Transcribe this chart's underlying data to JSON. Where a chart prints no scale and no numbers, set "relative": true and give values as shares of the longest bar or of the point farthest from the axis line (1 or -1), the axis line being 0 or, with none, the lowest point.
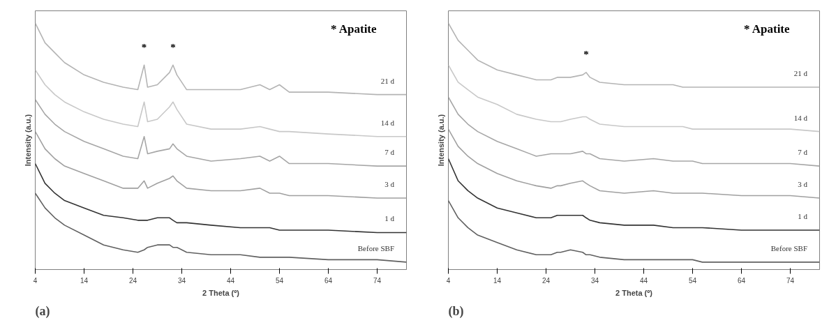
{
  "chart_data": [
    {
      "type": "line",
      "relative": true,
      "xlabel": "2 Theta (º)",
      "ylabel": "Intensity (a.u.)",
      "xlim": [
        4,
        80
      ],
      "xticks": [
        4,
        14,
        24,
        34,
        44,
        54,
        64,
        74
      ],
      "grid": false,
      "legend": false,
      "annotations": [
        "* Apatite",
        "(a)",
        "*",
        "*"
      ],
      "x": [
        4,
        6,
        8,
        10,
        14,
        18,
        22,
        25,
        26.3,
        27,
        29,
        31.5,
        32.2,
        33,
        35,
        40,
        46,
        50,
        52,
        54,
        56,
        64,
        74,
        80
      ],
      "series": [
        {
          "name": "21 d",
          "color": "#b4b4b4",
          "values": [
            1.0,
            0.92,
            0.88,
            0.84,
            0.79,
            0.76,
            0.74,
            0.73,
            0.83,
            0.74,
            0.75,
            0.8,
            0.83,
            0.79,
            0.73,
            0.73,
            0.73,
            0.75,
            0.73,
            0.75,
            0.72,
            0.72,
            0.71,
            0.71
          ]
        },
        {
          "name": "14 d",
          "color": "#c8c8c8",
          "values": [
            0.81,
            0.75,
            0.71,
            0.68,
            0.64,
            0.61,
            0.59,
            0.58,
            0.68,
            0.6,
            0.61,
            0.66,
            0.68,
            0.65,
            0.59,
            0.57,
            0.57,
            0.58,
            0.57,
            0.56,
            0.56,
            0.55,
            0.54,
            0.54
          ]
        },
        {
          "name": "7 d",
          "color": "#a6a6a6",
          "values": [
            0.69,
            0.63,
            0.59,
            0.56,
            0.52,
            0.49,
            0.46,
            0.45,
            0.54,
            0.47,
            0.48,
            0.49,
            0.51,
            0.49,
            0.46,
            0.44,
            0.45,
            0.46,
            0.44,
            0.46,
            0.43,
            0.43,
            0.42,
            0.42
          ]
        },
        {
          "name": "3 d",
          "color": "#a0a0a0",
          "values": [
            0.56,
            0.49,
            0.45,
            0.42,
            0.39,
            0.36,
            0.33,
            0.33,
            0.36,
            0.33,
            0.35,
            0.37,
            0.38,
            0.36,
            0.33,
            0.32,
            0.32,
            0.33,
            0.31,
            0.31,
            0.3,
            0.3,
            0.29,
            0.29
          ]
        },
        {
          "name": "1 d",
          "color": "#333333",
          "values": [
            0.43,
            0.35,
            0.31,
            0.28,
            0.25,
            0.22,
            0.21,
            0.2,
            0.2,
            0.2,
            0.21,
            0.21,
            0.2,
            0.19,
            0.19,
            0.18,
            0.17,
            0.17,
            0.17,
            0.16,
            0.16,
            0.16,
            0.15,
            0.15
          ]
        },
        {
          "name": "Before SBF",
          "color": "#606060",
          "values": [
            0.31,
            0.25,
            0.21,
            0.18,
            0.14,
            0.1,
            0.08,
            0.07,
            0.08,
            0.09,
            0.1,
            0.1,
            0.09,
            0.09,
            0.07,
            0.06,
            0.06,
            0.05,
            0.05,
            0.05,
            0.05,
            0.04,
            0.04,
            0.03
          ]
        }
      ]
    },
    {
      "type": "line",
      "relative": true,
      "xlabel": "2 Theta (º)",
      "ylabel": "Intensity (a.u.)",
      "xlim": [
        4,
        80
      ],
      "xticks": [
        4,
        14,
        24,
        34,
        44,
        54,
        64,
        74
      ],
      "grid": false,
      "legend": false,
      "annotations": [
        "* Apatite",
        "(b)",
        "*"
      ],
      "x": [
        4,
        6,
        8,
        10,
        14,
        18,
        22,
        25,
        26.3,
        27,
        29,
        31.5,
        32.2,
        33,
        35,
        40,
        46,
        50,
        52,
        54,
        56,
        64,
        74,
        80
      ],
      "series": [
        {
          "name": "21 d",
          "color": "#b4b4b4",
          "values": [
            1.0,
            0.93,
            0.89,
            0.85,
            0.81,
            0.79,
            0.77,
            0.77,
            0.78,
            0.78,
            0.78,
            0.79,
            0.8,
            0.78,
            0.76,
            0.75,
            0.75,
            0.75,
            0.74,
            0.74,
            0.74,
            0.74,
            0.74,
            0.74
          ]
        },
        {
          "name": "14 d",
          "color": "#c8c8c8",
          "values": [
            0.83,
            0.76,
            0.73,
            0.7,
            0.67,
            0.63,
            0.61,
            0.6,
            0.6,
            0.6,
            0.61,
            0.62,
            0.62,
            0.61,
            0.59,
            0.58,
            0.58,
            0.58,
            0.58,
            0.57,
            0.57,
            0.57,
            0.57,
            0.56
          ]
        },
        {
          "name": "7 d",
          "color": "#a6a6a6",
          "values": [
            0.7,
            0.63,
            0.59,
            0.56,
            0.52,
            0.49,
            0.46,
            0.47,
            0.47,
            0.47,
            0.47,
            0.48,
            0.47,
            0.47,
            0.45,
            0.44,
            0.45,
            0.44,
            0.44,
            0.44,
            0.43,
            0.43,
            0.43,
            0.42
          ]
        },
        {
          "name": "3 d",
          "color": "#a0a0a0",
          "values": [
            0.57,
            0.5,
            0.46,
            0.43,
            0.39,
            0.36,
            0.34,
            0.33,
            0.34,
            0.34,
            0.35,
            0.36,
            0.35,
            0.34,
            0.32,
            0.31,
            0.32,
            0.31,
            0.31,
            0.31,
            0.31,
            0.3,
            0.3,
            0.29
          ]
        },
        {
          "name": "1 d",
          "color": "#333333",
          "values": [
            0.45,
            0.36,
            0.32,
            0.29,
            0.25,
            0.23,
            0.21,
            0.21,
            0.22,
            0.22,
            0.22,
            0.22,
            0.21,
            0.2,
            0.19,
            0.18,
            0.18,
            0.17,
            0.17,
            0.17,
            0.17,
            0.16,
            0.16,
            0.16
          ]
        },
        {
          "name": "Before SBF",
          "color": "#606060",
          "values": [
            0.28,
            0.21,
            0.17,
            0.14,
            0.11,
            0.08,
            0.06,
            0.06,
            0.07,
            0.07,
            0.08,
            0.07,
            0.06,
            0.06,
            0.05,
            0.04,
            0.04,
            0.04,
            0.04,
            0.04,
            0.03,
            0.03,
            0.03,
            0.03
          ]
        }
      ]
    }
  ]
}
